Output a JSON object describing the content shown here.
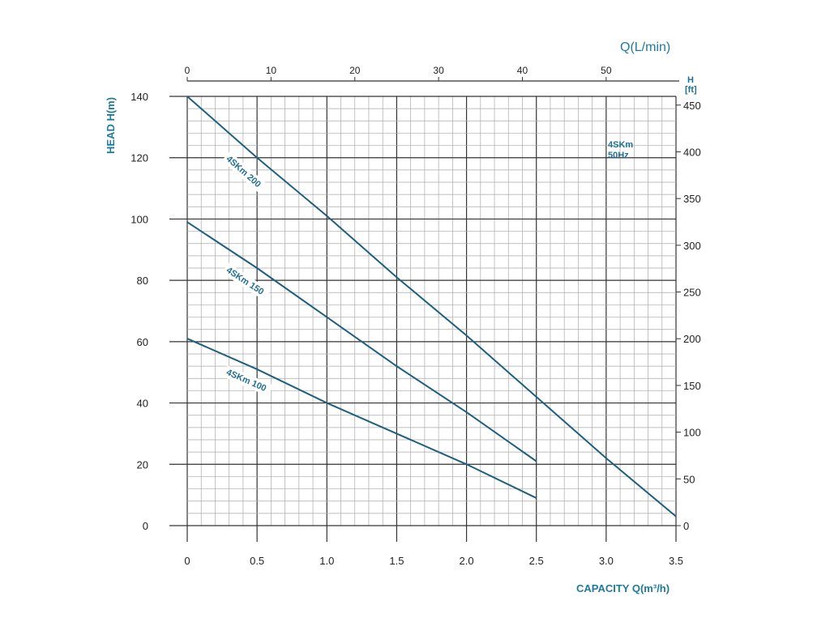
{
  "chart_data": {
    "type": "line",
    "title": "",
    "annotation": [
      "4SKm",
      "50Hz"
    ],
    "xlabel": "CAPACITY Q(m³/h)",
    "ylabel": "HEAD H(m)",
    "top_xlabel": "Q(L/min)",
    "right_ylabel": [
      "H",
      "[ft]"
    ],
    "xlim": [
      0,
      3.5
    ],
    "ylim": [
      0,
      140
    ],
    "x_ticks": [
      "0",
      "0.5",
      "1.0",
      "1.5",
      "2.0",
      "2.5",
      "3.0",
      "3.5"
    ],
    "y_ticks": [
      "0",
      "20",
      "40",
      "60",
      "80",
      "100",
      "120",
      "140"
    ],
    "top_ticks": [
      "0",
      "10",
      "20",
      "30",
      "40",
      "50"
    ],
    "right_ticks": [
      "0",
      "50",
      "100",
      "150",
      "200",
      "250",
      "300",
      "350",
      "400",
      "450"
    ],
    "grid": true,
    "colors": {
      "line": "#1e5f80",
      "text": "#1f7aa0"
    },
    "series": [
      {
        "name": "4SKm 200",
        "x": [
          0,
          0.5,
          1.0,
          1.5,
          2.0,
          2.5,
          3.0,
          3.5
        ],
        "y": [
          140,
          120,
          101,
          81,
          62,
          42,
          22,
          3
        ]
      },
      {
        "name": "4SKm 150",
        "x": [
          0,
          0.5,
          1.0,
          1.5,
          2.0,
          2.5
        ],
        "y": [
          99,
          84,
          68,
          52,
          37,
          21
        ]
      },
      {
        "name": "4SKm 100",
        "x": [
          0,
          0.5,
          1.0,
          1.5,
          2.0,
          2.5
        ],
        "y": [
          61,
          51,
          40,
          30,
          20,
          9
        ]
      }
    ]
  }
}
